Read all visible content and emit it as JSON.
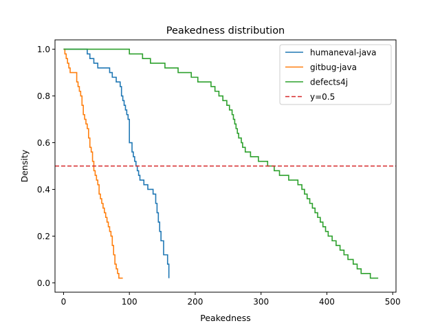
{
  "chart_data": {
    "type": "line",
    "title": "Peakedness distribution",
    "xlabel": "Peakedness",
    "ylabel": "Density",
    "xlim": [
      -13,
      505
    ],
    "ylim": [
      -0.04,
      1.04
    ],
    "xticks": [
      0,
      100,
      200,
      300,
      400,
      500
    ],
    "xtick_labels": [
      "0",
      "100",
      "200",
      "300",
      "400",
      "500"
    ],
    "yticks": [
      0.0,
      0.2,
      0.4,
      0.6,
      0.8,
      1.0
    ],
    "ytick_labels": [
      "0.0",
      "0.2",
      "0.4",
      "0.6",
      "0.8",
      "1.0"
    ],
    "grid": false,
    "legend_position": "top-right",
    "series": [
      {
        "name": "humaneval-java",
        "color": "#1f77b4",
        "style": "step",
        "x": [
          0,
          36,
          40,
          46,
          52,
          56,
          60,
          70,
          74,
          80,
          86,
          88,
          90,
          92,
          94,
          96,
          98,
          100,
          104,
          106,
          108,
          110,
          112,
          114,
          116,
          122,
          128,
          136,
          140,
          142,
          144,
          146,
          148,
          152,
          158,
          160
        ],
        "y": [
          1.0,
          0.98,
          0.96,
          0.94,
          0.92,
          0.92,
          0.92,
          0.9,
          0.88,
          0.86,
          0.84,
          0.8,
          0.78,
          0.76,
          0.74,
          0.72,
          0.7,
          0.6,
          0.56,
          0.54,
          0.52,
          0.5,
          0.48,
          0.46,
          0.44,
          0.42,
          0.4,
          0.38,
          0.34,
          0.3,
          0.26,
          0.22,
          0.18,
          0.12,
          0.08,
          0.02
        ]
      },
      {
        "name": "gitbug-java",
        "color": "#ff7f0e",
        "style": "step",
        "x": [
          0,
          2,
          4,
          6,
          8,
          10,
          20,
          22,
          24,
          26,
          28,
          30,
          32,
          34,
          36,
          38,
          40,
          42,
          44,
          46,
          48,
          50,
          52,
          54,
          56,
          58,
          60,
          62,
          64,
          66,
          68,
          70,
          72,
          74,
          76,
          78,
          80,
          82,
          84,
          86,
          90
        ],
        "y": [
          1.0,
          0.98,
          0.96,
          0.94,
          0.92,
          0.9,
          0.86,
          0.84,
          0.82,
          0.8,
          0.76,
          0.72,
          0.7,
          0.68,
          0.66,
          0.62,
          0.58,
          0.56,
          0.52,
          0.48,
          0.46,
          0.44,
          0.42,
          0.38,
          0.36,
          0.34,
          0.32,
          0.3,
          0.28,
          0.26,
          0.24,
          0.22,
          0.2,
          0.16,
          0.12,
          0.08,
          0.06,
          0.04,
          0.02,
          0.02,
          0.02
        ]
      },
      {
        "name": "defects4j",
        "color": "#2ca02c",
        "style": "step",
        "x": [
          0,
          98,
          100,
          106,
          120,
          124,
          132,
          146,
          154,
          166,
          174,
          186,
          194,
          204,
          216,
          224,
          230,
          236,
          242,
          248,
          252,
          256,
          258,
          260,
          262,
          264,
          266,
          270,
          272,
          276,
          280,
          284,
          290,
          296,
          304,
          310,
          316,
          320,
          328,
          332,
          342,
          350,
          356,
          362,
          366,
          370,
          374,
          378,
          382,
          386,
          390,
          394,
          398,
          402,
          408,
          414,
          420,
          426,
          432,
          440,
          446,
          452,
          458,
          466,
          472,
          478
        ],
        "y": [
          1.0,
          1.0,
          0.98,
          0.98,
          0.96,
          0.96,
          0.94,
          0.94,
          0.92,
          0.92,
          0.9,
          0.9,
          0.88,
          0.86,
          0.86,
          0.84,
          0.82,
          0.8,
          0.78,
          0.76,
          0.74,
          0.72,
          0.7,
          0.68,
          0.66,
          0.64,
          0.62,
          0.6,
          0.58,
          0.56,
          0.56,
          0.54,
          0.54,
          0.52,
          0.52,
          0.5,
          0.5,
          0.48,
          0.46,
          0.46,
          0.44,
          0.44,
          0.42,
          0.4,
          0.38,
          0.36,
          0.34,
          0.32,
          0.3,
          0.28,
          0.26,
          0.24,
          0.22,
          0.2,
          0.18,
          0.16,
          0.14,
          0.12,
          0.1,
          0.08,
          0.06,
          0.04,
          0.04,
          0.02,
          0.02,
          0.02
        ]
      },
      {
        "name": "y=0.5",
        "color": "#d62728",
        "style": "dashed",
        "hline": 0.5
      }
    ]
  }
}
